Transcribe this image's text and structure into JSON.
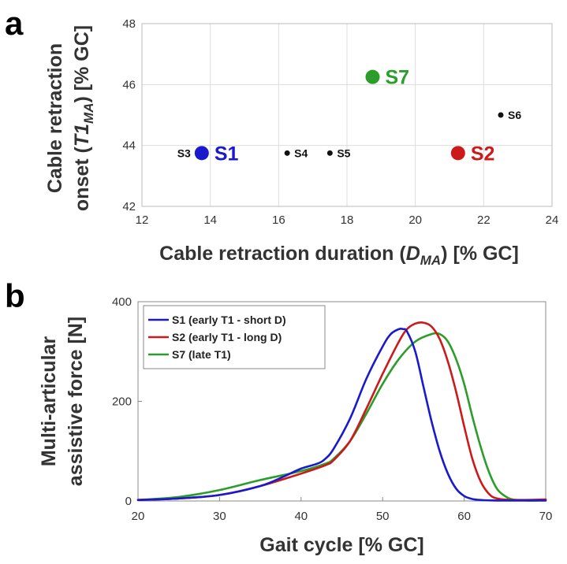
{
  "panels": {
    "a": "a",
    "b": "b"
  },
  "chart_data": [
    {
      "type": "scatter",
      "panel": "a",
      "xlabel": {
        "pre": "Cable retraction duration (",
        "sym": "D",
        "sub": "MA",
        "post": ") [% GC]"
      },
      "ylabel": {
        "line1": "Cable retraction",
        "line2": {
          "pre": "onset (",
          "sym": "T1",
          "sub": "MA",
          "post": ") [% GC]"
        }
      },
      "xlim": [
        12,
        24
      ],
      "ylim": [
        42,
        48
      ],
      "xticks": [
        "12",
        "14",
        "16",
        "18",
        "20",
        "22",
        "24"
      ],
      "yticks": [
        "42",
        "44",
        "46",
        "48"
      ],
      "grid": true,
      "points": [
        {
          "label": "S1",
          "x": 13.75,
          "y": 43.75,
          "color": "#1a1acc",
          "size": "large",
          "label_side": "right"
        },
        {
          "label": "S3",
          "x": 13.75,
          "y": 43.75,
          "color": "#111111",
          "size": "none",
          "label_side": "left"
        },
        {
          "label": "S4",
          "x": 16.25,
          "y": 43.75,
          "color": "#111111",
          "size": "small",
          "label_side": "right"
        },
        {
          "label": "S5",
          "x": 17.5,
          "y": 43.75,
          "color": "#111111",
          "size": "small",
          "label_side": "right"
        },
        {
          "label": "S7",
          "x": 18.75,
          "y": 46.25,
          "color": "#2a9d2a",
          "size": "large",
          "label_side": "right"
        },
        {
          "label": "S2",
          "x": 21.25,
          "y": 43.75,
          "color": "#cc1a1a",
          "size": "large",
          "label_side": "right"
        },
        {
          "label": "S6",
          "x": 22.5,
          "y": 45.0,
          "color": "#111111",
          "size": "small",
          "label_side": "right"
        }
      ]
    },
    {
      "type": "line",
      "panel": "b",
      "xlabel": "Gait cycle [% GC]",
      "ylabel": {
        "line1": "Multi-articular",
        "line2": "assistive force [N]"
      },
      "xlim": [
        20,
        70
      ],
      "ylim": [
        0,
        400
      ],
      "xticks": [
        "20",
        "30",
        "40",
        "50",
        "60",
        "70"
      ],
      "yticks": [
        "0",
        "200",
        "400"
      ],
      "legend_position": "top-left",
      "series": [
        {
          "name": "S1 (early T1 - short D)",
          "color": "#1a1acc",
          "x": [
            20,
            25,
            30,
            35,
            38,
            40,
            42,
            43,
            44,
            46,
            48,
            50,
            51,
            52,
            52.5,
            53,
            54,
            55,
            56,
            57,
            58,
            59,
            60,
            61,
            62,
            64,
            70
          ],
          "y": [
            2,
            5,
            12,
            30,
            50,
            65,
            75,
            85,
            105,
            165,
            245,
            310,
            335,
            345,
            345,
            340,
            300,
            230,
            160,
            100,
            55,
            25,
            10,
            4,
            2,
            1,
            1
          ]
        },
        {
          "name": "S2 (early T1 - long D)",
          "color": "#cc1a1a",
          "x": [
            20,
            25,
            30,
            35,
            40,
            43,
            44,
            46,
            48,
            50,
            52,
            53,
            54,
            55,
            56,
            57,
            58,
            59,
            60,
            61,
            62,
            63,
            64,
            66,
            70
          ],
          "y": [
            2,
            5,
            12,
            30,
            55,
            72,
            82,
            120,
            185,
            255,
            320,
            345,
            356,
            358,
            350,
            325,
            280,
            220,
            150,
            85,
            40,
            15,
            5,
            2,
            3
          ]
        },
        {
          "name": "S7 (late T1)",
          "color": "#2a9d2a",
          "x": [
            20,
            25,
            30,
            35,
            40,
            43,
            44,
            46,
            48,
            50,
            52,
            54,
            56,
            57,
            58,
            59,
            60,
            61,
            62,
            63,
            64,
            65,
            66,
            68,
            70
          ],
          "y": [
            2,
            8,
            22,
            42,
            60,
            75,
            85,
            120,
            175,
            235,
            285,
            320,
            335,
            335,
            320,
            285,
            235,
            170,
            110,
            60,
            25,
            10,
            3,
            1,
            2
          ]
        }
      ]
    }
  ]
}
